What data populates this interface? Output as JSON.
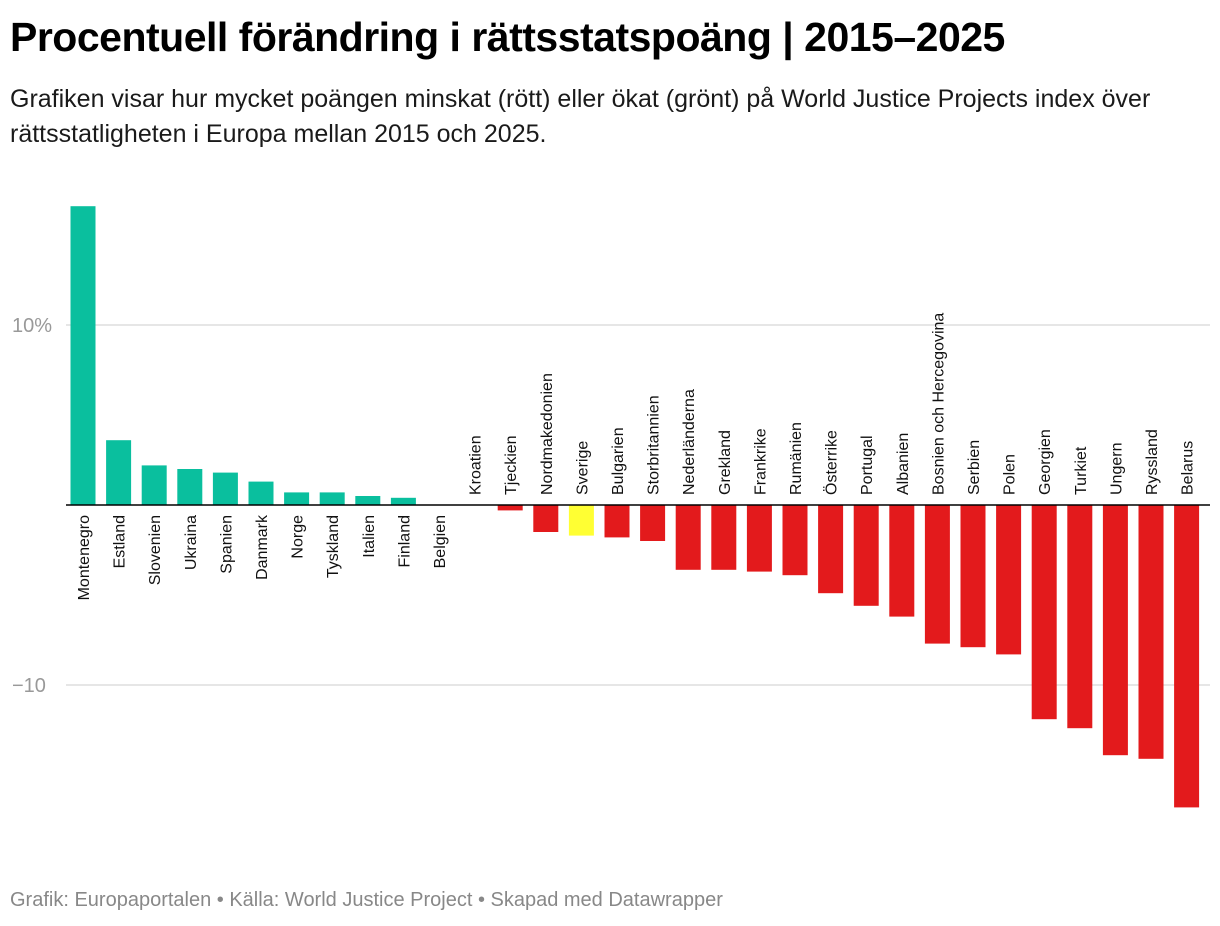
{
  "header": {
    "title": "Procentuell förändring i rättsstatspoäng | 2015–2025",
    "subtitle": "Grafiken visar hur mycket poängen minskat (rött) eller ökat (grönt) på World Justice Projects index över rättsstatligheten i Europa mellan 2015 och 2025."
  },
  "footer": {
    "text": "Grafik: Europaportalen • Källa: World Justice Project • Skapad med Datawrapper"
  },
  "colors": {
    "positive": "#0abf9e",
    "negative": "#e31a1c",
    "highlight": "#ffff33",
    "grid": "#dddddd",
    "baseline": "#000000"
  },
  "chart_data": {
    "type": "bar",
    "title": "Procentuell förändring i rättsstatspoäng | 2015–2025",
    "xlabel": "",
    "ylabel": "",
    "ylim": [
      -18.2,
      16.6
    ],
    "yticks": [
      {
        "value": 10,
        "label": "10%"
      },
      {
        "value": -10,
        "label": "−10"
      }
    ],
    "grid": true,
    "highlight": "Sverige",
    "categories": [
      "Montenegro",
      "Estland",
      "Slovenien",
      "Ukraina",
      "Spanien",
      "Danmark",
      "Norge",
      "Tyskland",
      "Italien",
      "Finland",
      "Belgien",
      "Kroatien",
      "Tjeckien",
      "Nordmakedonien",
      "Sverige",
      "Bulgarien",
      "Storbritannien",
      "Nederländerna",
      "Grekland",
      "Frankrike",
      "Rumänien",
      "Österrike",
      "Portugal",
      "Albanien",
      "Bosnien och Hercegovina",
      "Serbien",
      "Polen",
      "Georgien",
      "Turkiet",
      "Ungern",
      "Ryssland",
      "Belarus"
    ],
    "values": [
      16.6,
      3.6,
      2.2,
      2.0,
      1.8,
      1.3,
      0.7,
      0.7,
      0.5,
      0.4,
      0.0,
      0.0,
      -0.3,
      -1.5,
      -1.7,
      -1.8,
      -2.0,
      -3.6,
      -3.6,
      -3.7,
      -3.9,
      -4.9,
      -5.6,
      -6.2,
      -7.7,
      -7.9,
      -8.3,
      -11.9,
      -12.4,
      -13.9,
      -14.1,
      -16.8
    ]
  }
}
